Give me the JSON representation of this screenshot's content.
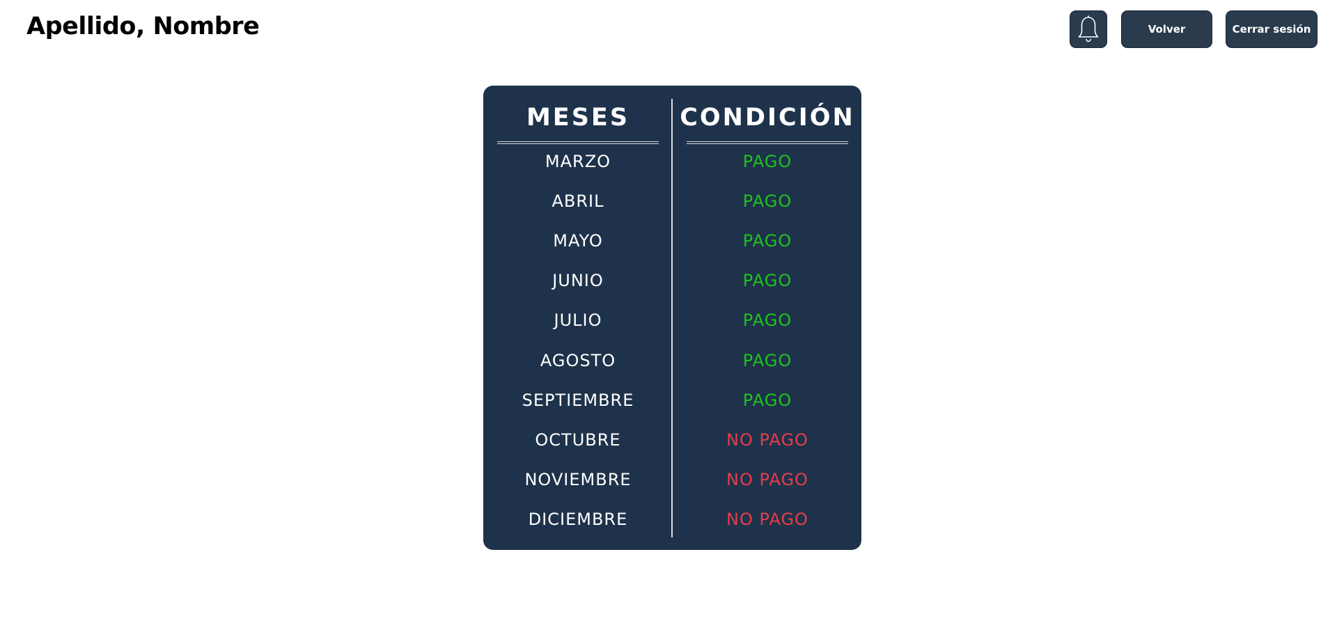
{
  "header": {
    "user_name": "Apellido, Nombre",
    "bell_icon": "bell-icon",
    "back_label": "Volver",
    "logout_label": "Cerrar sesión"
  },
  "colors": {
    "button_bg": "#2b3b4e",
    "card_bg": "#1f324b",
    "paid": "#1ec21e",
    "unpaid": "#e63d4a"
  },
  "table": {
    "headers": [
      "MESES",
      "CONDICIÓN"
    ],
    "rows": [
      {
        "month": "MARZO",
        "status": "PAGO",
        "paid": true
      },
      {
        "month": "ABRIL",
        "status": "PAGO",
        "paid": true
      },
      {
        "month": "MAYO",
        "status": "PAGO",
        "paid": true
      },
      {
        "month": "JUNIO",
        "status": "PAGO",
        "paid": true
      },
      {
        "month": "JULIO",
        "status": "PAGO",
        "paid": true
      },
      {
        "month": "AGOSTO",
        "status": "PAGO",
        "paid": true
      },
      {
        "month": "SEPTIEMBRE",
        "status": "PAGO",
        "paid": true
      },
      {
        "month": "OCTUBRE",
        "status": "NO PAGO",
        "paid": false
      },
      {
        "month": "NOVIEMBRE",
        "status": "NO PAGO",
        "paid": false
      },
      {
        "month": "DICIEMBRE",
        "status": "NO PAGO",
        "paid": false
      }
    ]
  }
}
